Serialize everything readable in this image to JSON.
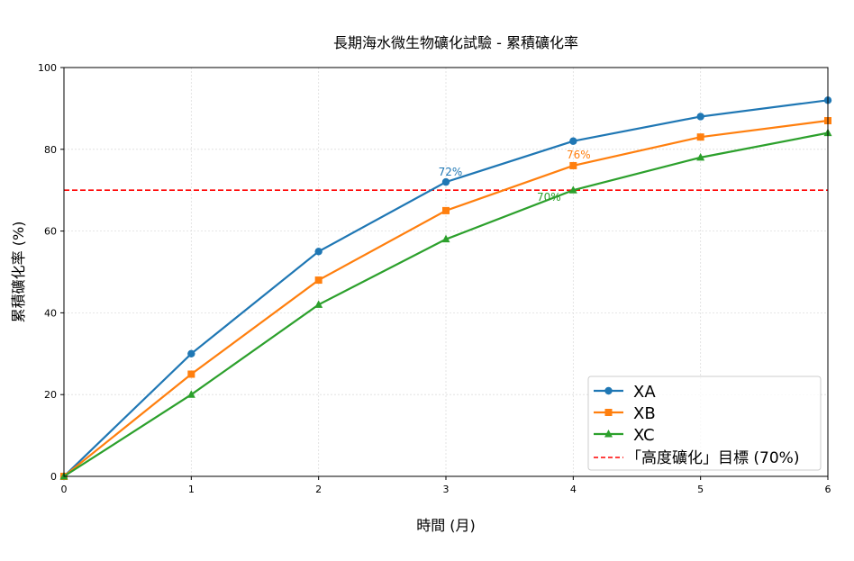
{
  "chart_data": {
    "type": "line",
    "title": "長期海水微生物礦化試驗 - 累積礦化率",
    "xlabel": "時間 (月)",
    "ylabel": "累積礦化率 (%)",
    "x": [
      0,
      1,
      2,
      3,
      4,
      5,
      6
    ],
    "xlim": [
      0,
      6
    ],
    "ylim": [
      0,
      100
    ],
    "xticks": [
      "0",
      "1",
      "2",
      "3",
      "4",
      "5",
      "6"
    ],
    "yticks": [
      "0",
      "20",
      "40",
      "60",
      "80",
      "100"
    ],
    "grid": true,
    "legend_position": "lower-right",
    "series": [
      {
        "name": "XA",
        "values": [
          0,
          30,
          55,
          72,
          82,
          88,
          92
        ],
        "color": "#1f77b4",
        "marker": "circle"
      },
      {
        "name": "XB",
        "values": [
          0,
          25,
          48,
          65,
          76,
          83,
          87
        ],
        "color": "#ff7f0e",
        "marker": "square"
      },
      {
        "name": "XC",
        "values": [
          0,
          20,
          42,
          58,
          70,
          78,
          84
        ],
        "color": "#2ca02c",
        "marker": "triangle"
      }
    ],
    "threshold": {
      "name": "「高度礦化」目標 (70%)",
      "value": 70,
      "color": "#ff0000"
    },
    "annotations": [
      {
        "text": "72%",
        "series": 0,
        "x": 3,
        "y": 72
      },
      {
        "text": "76%",
        "series": 1,
        "x": 4,
        "y": 76
      },
      {
        "text": "70%",
        "series": 2,
        "x": 4,
        "y": 70
      }
    ]
  }
}
